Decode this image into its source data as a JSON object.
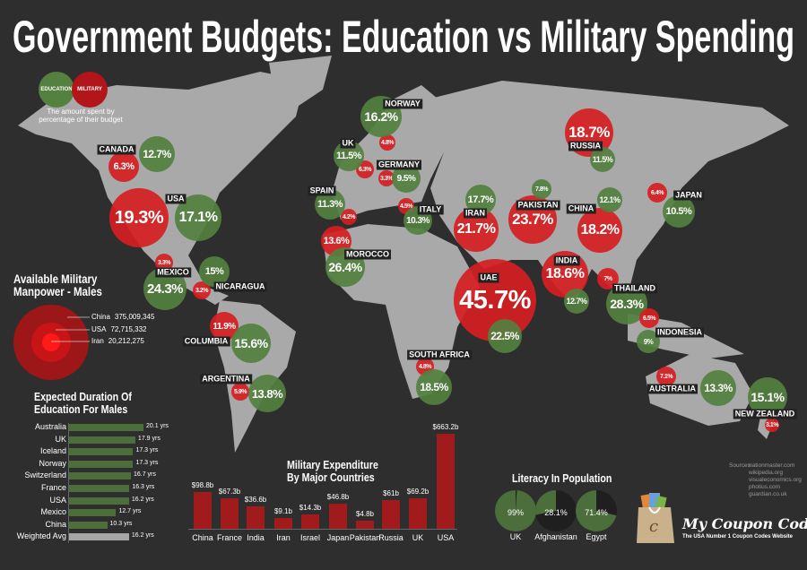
{
  "title": "Government Budgets: Education vs Military Spending",
  "legend": {
    "education_label": "EDUCATION",
    "military_label": "MILITARY",
    "description_line1": "The amount spent by",
    "description_line2": "percentage of their budget",
    "education_color": "#548040",
    "military_color": "#d61e22"
  },
  "countries": [
    {
      "name": "CANADA",
      "education": "12.7%",
      "military": "6.3%"
    },
    {
      "name": "USA",
      "education": "17.1%",
      "military": "19.3%"
    },
    {
      "name": "MEXICO",
      "education": "24.3%",
      "military": "3.3%"
    },
    {
      "name": "NICARAGUA",
      "education": "15%",
      "military": "3.2%"
    },
    {
      "name": "COLUMBIA",
      "education": "15.6%",
      "military": "11.9%"
    },
    {
      "name": "ARGENTINA",
      "education": "13.8%",
      "military": "5.9%"
    },
    {
      "name": "NORWAY",
      "education": "16.2%",
      "military": "4.8%"
    },
    {
      "name": "UK",
      "education": "11.5%",
      "military": "6.3%"
    },
    {
      "name": "GERMANY",
      "education": "9.5%",
      "military": "3.3%"
    },
    {
      "name": "SPAIN",
      "education": "11.3%",
      "military": "4.2%"
    },
    {
      "name": "ITALY",
      "education": "10.3%",
      "military": "4.5%"
    },
    {
      "name": "MOROCCO",
      "education": "26.4%",
      "military": "13.6%"
    },
    {
      "name": "IRAN",
      "education": "17.7%",
      "military": "21.7%"
    },
    {
      "name": "PAKISTAN",
      "education": "7.8%",
      "military": "23.7%"
    },
    {
      "name": "CHINA",
      "education": "12.1%",
      "military": "18.2%"
    },
    {
      "name": "RUSSIA",
      "education": "11.5%",
      "military": "18.7%"
    },
    {
      "name": "JAPAN",
      "education": "10.5%",
      "military": "6.4%"
    },
    {
      "name": "UAE",
      "education": "22.5%",
      "military": "45.7%"
    },
    {
      "name": "INDIA",
      "education": "12.7%",
      "military": "18.6%"
    },
    {
      "name": "THAILAND",
      "education": "28.3%",
      "military": "7%"
    },
    {
      "name": "INDONESIA",
      "education": "9%",
      "military": "6.5%"
    },
    {
      "name": "SOUTH AFRICA",
      "education": "18.5%",
      "military": "4.8%"
    },
    {
      "name": "AUSTRALIA",
      "education": "13.3%",
      "military": "7.1%"
    },
    {
      "name": "NEW ZEALAND",
      "education": "15.1%",
      "military": "3.1%"
    }
  ],
  "manpower": {
    "title_line1": "Available Military",
    "title_line2": "Manpower - Males",
    "items": [
      {
        "country": "China",
        "value": "375,009,345"
      },
      {
        "country": "USA",
        "value": "72,715,332"
      },
      {
        "country": "Iran",
        "value": "20,212,275"
      }
    ]
  },
  "chart_data": [
    {
      "type": "bar",
      "orientation": "horizontal",
      "title": "Expected Duration Of Education For Males",
      "categories": [
        "Australia",
        "UK",
        "Iceland",
        "Norway",
        "Switzerland",
        "France",
        "USA",
        "Mexico",
        "China",
        "Weighted Avg"
      ],
      "values": [
        20.1,
        17.9,
        17.3,
        17.3,
        16.7,
        16.3,
        16.2,
        12.7,
        10.3,
        16.2
      ],
      "value_labels": [
        "20.1 yrs",
        "17.9 yrs",
        "17.3 yrs",
        "17.3 yrs",
        "16.7 yrs",
        "16.3 yrs",
        "16.2 yrs",
        "12.7 yrs",
        "10.3 yrs",
        "16.2 yrs"
      ],
      "colors": {
        "bar": "#4b6e3a",
        "average": "#a6a6a6"
      }
    },
    {
      "type": "bar",
      "title_line1": "Military Expenditure",
      "title_line2": "By Major Countries",
      "categories": [
        "China",
        "France",
        "India",
        "Iran",
        "Israel",
        "Japan",
        "Pakistan",
        "Russia",
        "UK",
        "USA"
      ],
      "values": [
        98.8,
        67.3,
        36.6,
        9.1,
        14.3,
        46.8,
        4.8,
        61,
        69.2,
        663.2
      ],
      "value_labels": [
        "$98.8b",
        "$67.3b",
        "$36.6b",
        "$9.1b",
        "$14.3b",
        "$46.8b",
        "$4.8b",
        "$61b",
        "$69.2b",
        "$663.2b"
      ],
      "color": "#a11a1c"
    },
    {
      "type": "pie",
      "title": "Literacy In Population",
      "categories": [
        "UK",
        "Afghanistan",
        "Egypt"
      ],
      "values": [
        99,
        28.1,
        71.4
      ],
      "value_labels": [
        "99%",
        "28.1%",
        "71.4%"
      ],
      "colors": {
        "literate": "#4b6e3a",
        "rest": "#1f1f1f"
      }
    }
  ],
  "sources": {
    "label": "Sources:",
    "items": [
      "nationmaster.com",
      "wikipedia.org",
      "visualeconomics.org",
      "photius.com",
      "guardian.co.uk"
    ]
  },
  "brand": {
    "name": "My Coupon Codes",
    "tagline": "The USA Number 1 Coupon Codes Website"
  }
}
